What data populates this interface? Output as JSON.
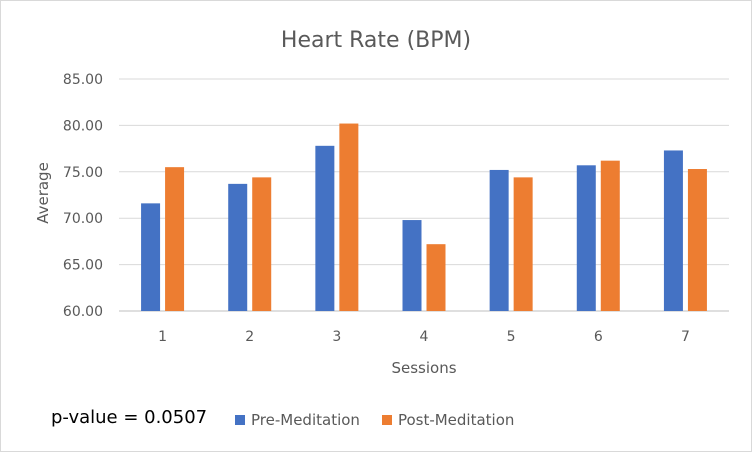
{
  "chart_data": {
    "type": "bar",
    "title": "Heart Rate (BPM)",
    "xlabel": "Sessions",
    "ylabel": "Average",
    "categories": [
      "1",
      "2",
      "3",
      "4",
      "5",
      "6",
      "7"
    ],
    "series": [
      {
        "name": "Pre-Meditation",
        "color": "#4472c4",
        "values": [
          71.6,
          73.7,
          77.8,
          69.8,
          75.2,
          75.7,
          77.3
        ]
      },
      {
        "name": "Post-Meditation",
        "color": "#ed7d31",
        "values": [
          75.5,
          74.4,
          80.2,
          67.2,
          74.4,
          76.2,
          75.3
        ]
      }
    ],
    "ylim": [
      60,
      85
    ],
    "yticks": [
      "60.00",
      "65.00",
      "70.00",
      "75.00",
      "80.00",
      "85.00"
    ],
    "grid": true,
    "legend_position": "bottom"
  },
  "annotation": {
    "p_value_text": "p-value = 0.0507"
  }
}
